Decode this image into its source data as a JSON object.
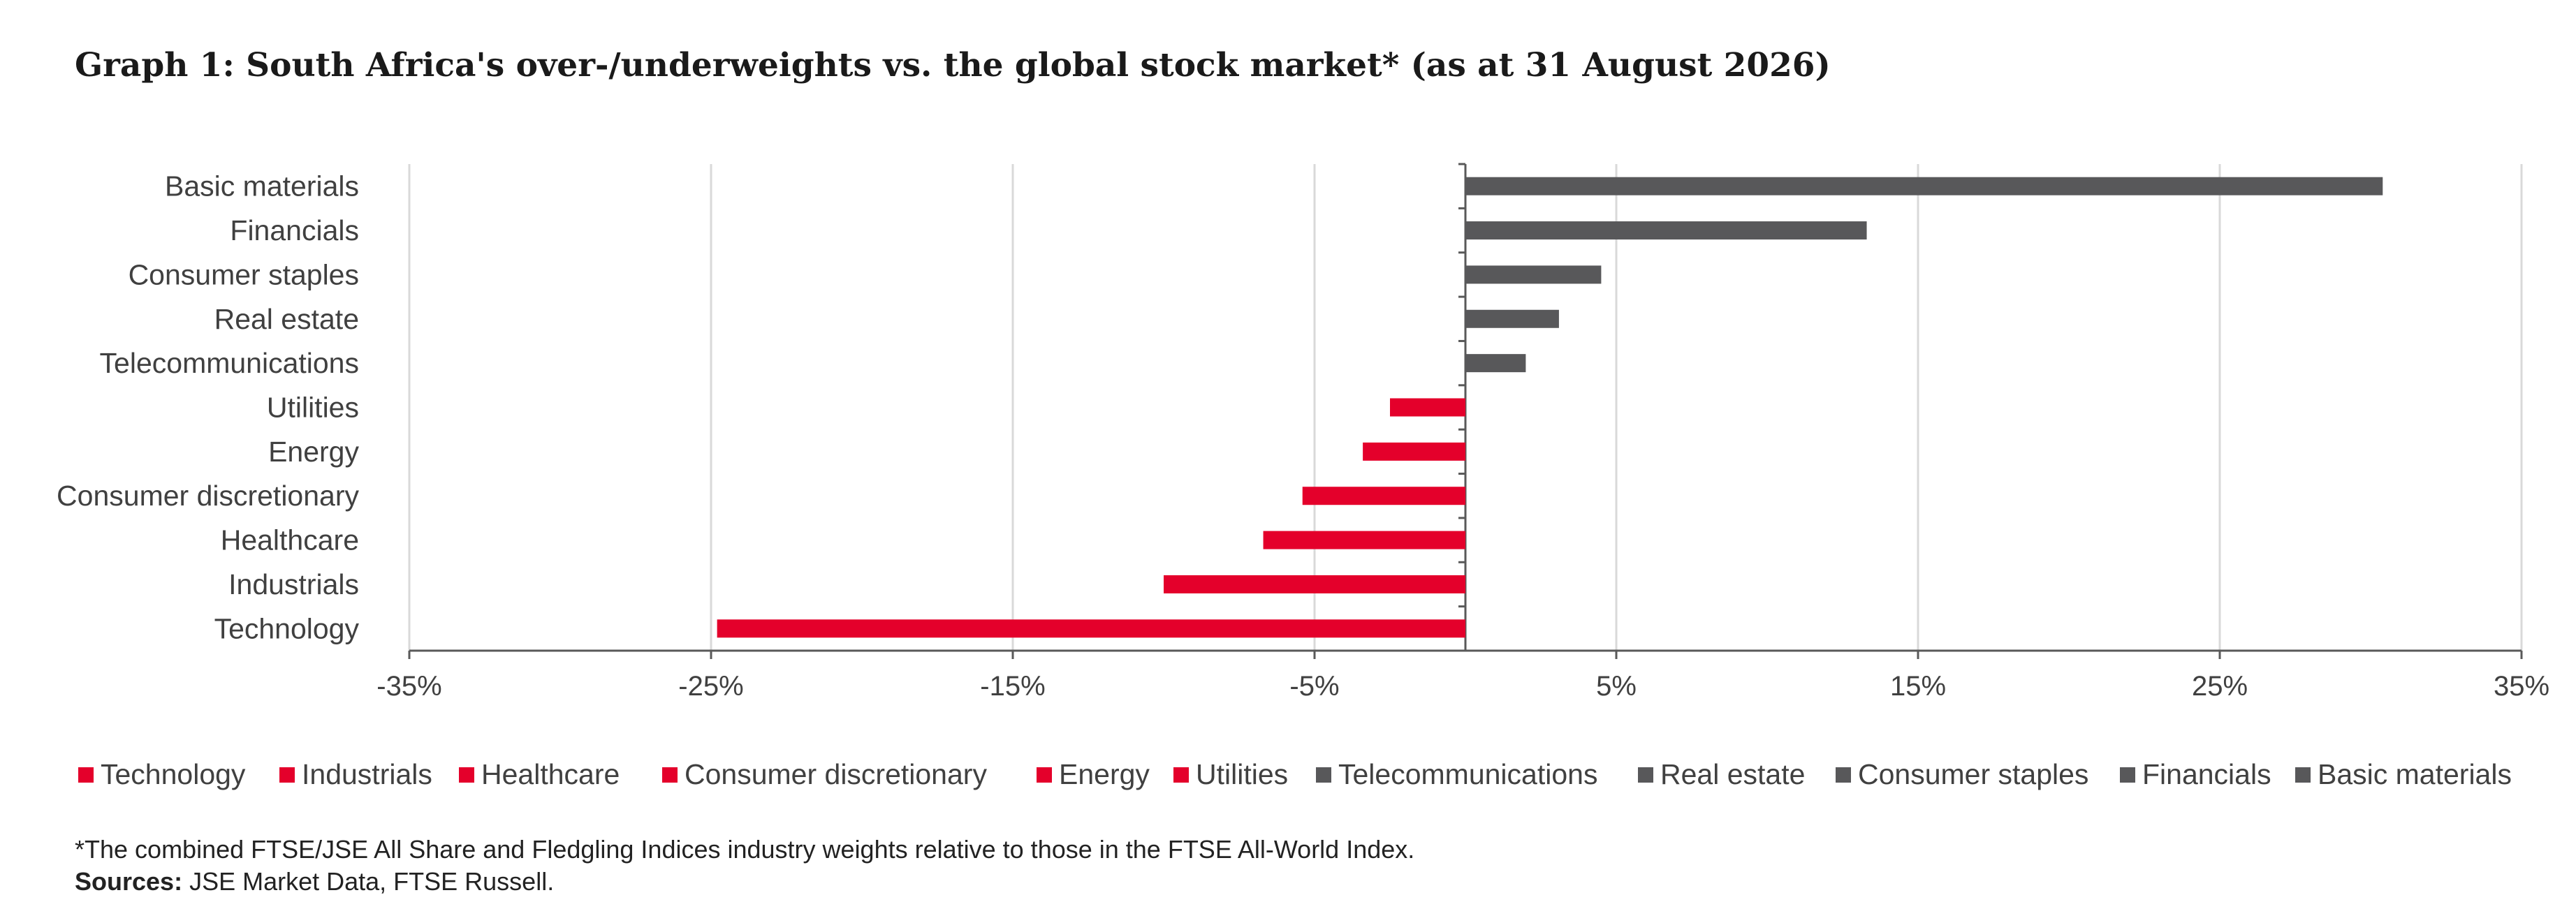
{
  "title": "Graph 1: South Africa's over-/underweights vs. the global stock market* (as at 31 August 2026)",
  "colors": {
    "positive": "#58585a",
    "negative": "#e4002b",
    "grid": "#d9d9d9",
    "axis": "#595959"
  },
  "chart_data": {
    "type": "bar",
    "orientation": "horizontal",
    "categories": [
      "Basic materials",
      "Financials",
      "Consumer staples",
      "Real estate",
      "Telecommunications",
      "Utilities",
      "Energy",
      "Consumer discretionary",
      "Healthcare",
      "Industrials",
      "Technology"
    ],
    "values": [
      30.4,
      13.3,
      4.5,
      3.1,
      2.0,
      -2.5,
      -3.4,
      -5.4,
      -6.7,
      -10.0,
      -24.8
    ],
    "xlim": [
      -35,
      35
    ],
    "xticks": [
      -35,
      -25,
      -15,
      -5,
      5,
      15,
      25,
      35
    ],
    "xtick_labels": [
      "-35%",
      "-25%",
      "-15%",
      "-5%",
      "5%",
      "15%",
      "25%",
      "35%"
    ],
    "grid": true,
    "legend_position": "bottom",
    "legend": [
      {
        "label": "Technology",
        "sign": "negative"
      },
      {
        "label": "Industrials",
        "sign": "negative"
      },
      {
        "label": "Healthcare",
        "sign": "negative"
      },
      {
        "label": "Consumer discretionary",
        "sign": "negative"
      },
      {
        "label": "Energy",
        "sign": "negative"
      },
      {
        "label": "Utilities",
        "sign": "negative"
      },
      {
        "label": "Telecommunications",
        "sign": "positive"
      },
      {
        "label": "Real estate",
        "sign": "positive"
      },
      {
        "label": "Consumer staples",
        "sign": "positive"
      },
      {
        "label": "Financials",
        "sign": "positive"
      },
      {
        "label": "Basic materials",
        "sign": "positive"
      }
    ]
  },
  "footnote": "*The combined FTSE/JSE All Share and Fledgling Indices industry weights relative to those in the FTSE All-World Index.",
  "sources": {
    "label": "Sources:",
    "text": " JSE Market Data, FTSE Russell."
  }
}
